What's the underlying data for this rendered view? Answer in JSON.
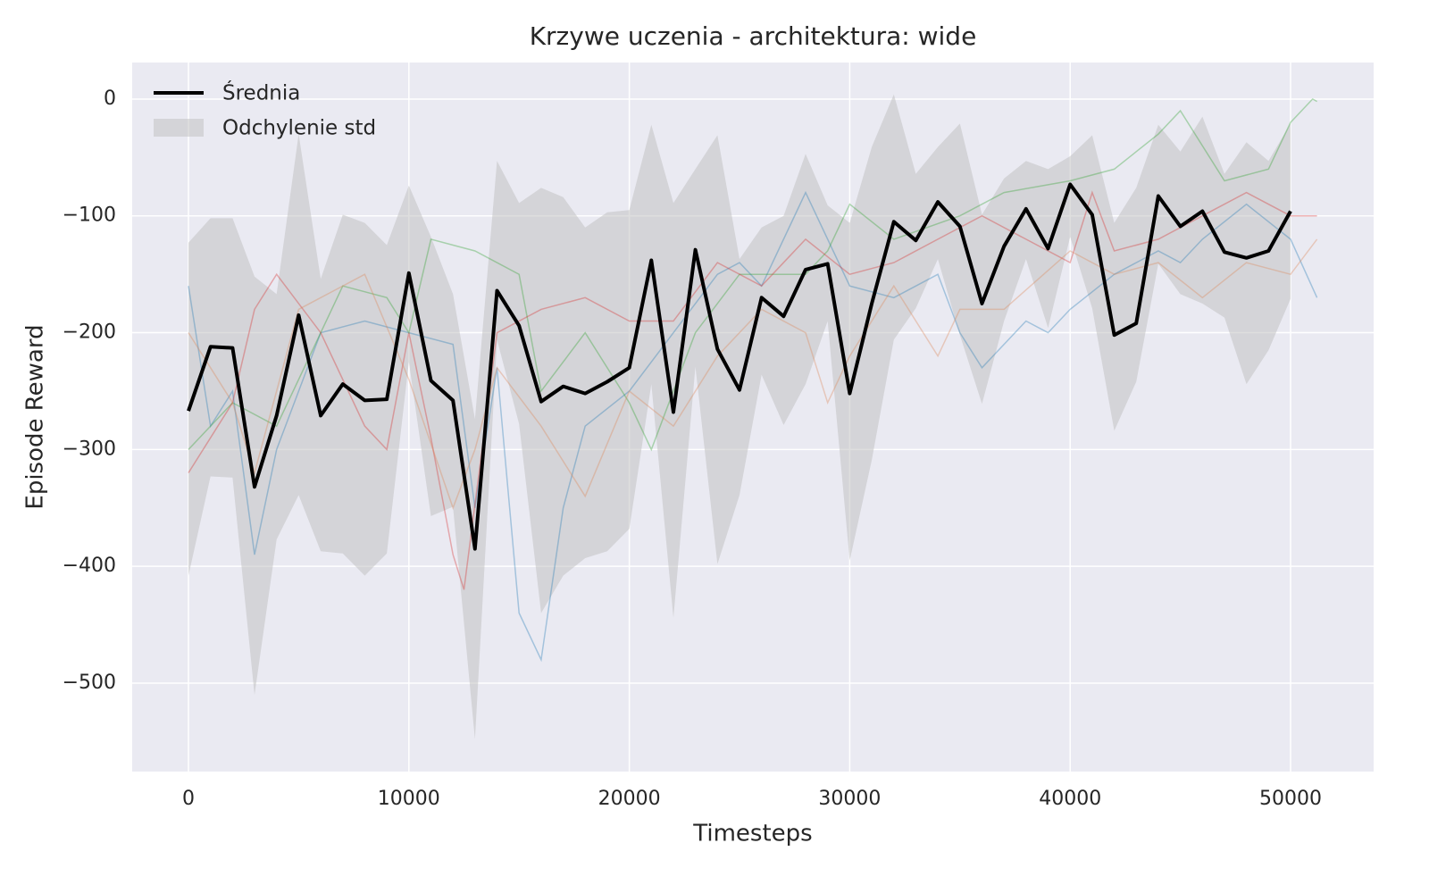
{
  "chart_data": {
    "type": "line",
    "title": "Krzywe uczenia - architektura: wide",
    "xlabel": "Timesteps",
    "ylabel": "Episode Reward",
    "xlim": [
      -2553,
      53768
    ],
    "ylim": [
      -575.7,
      31.3
    ],
    "xticks": [
      0,
      10000,
      20000,
      30000,
      40000,
      50000
    ],
    "yticks": [
      {
        "value": 0,
        "label": "0"
      },
      {
        "value": -100,
        "label": "−100"
      },
      {
        "value": -200,
        "label": "−200"
      },
      {
        "value": -300,
        "label": "−300"
      },
      {
        "value": -400,
        "label": "−400"
      },
      {
        "value": -500,
        "label": "−500"
      }
    ],
    "grid": true,
    "legend": "upper left",
    "x": [
      0,
      1000,
      2000,
      3000,
      4000,
      5000,
      6000,
      7000,
      8000,
      9000,
      10000,
      11000,
      12000,
      13000,
      14000,
      15000,
      16000,
      17000,
      18000,
      19000,
      20000,
      21000,
      22000,
      23000,
      24000,
      25000,
      26000,
      27000,
      28000,
      29000,
      30000,
      31000,
      32000,
      33000,
      34000,
      35000,
      36000,
      37000,
      38000,
      39000,
      40000,
      41000,
      42000,
      43000,
      44000,
      45000,
      46000,
      47000,
      48000,
      49000,
      50000
    ],
    "series": [
      {
        "name": "Średnia",
        "color": "#000000",
        "values": [
          -267,
          -212,
          -213,
          -332,
          -271,
          -185,
          -271,
          -244,
          -258,
          -257,
          -149,
          -241,
          -258,
          -385,
          -164,
          -194,
          -259,
          -246,
          -252,
          -242,
          -230,
          -138,
          -268,
          -129,
          -214,
          -249,
          -170,
          -186,
          -146,
          -141,
          -252,
          -175,
          -105,
          -121,
          -88,
          -109,
          -175,
          -126,
          -94,
          -128,
          -73,
          -99,
          -202,
          -192,
          -83,
          -109,
          -96,
          -131,
          -136,
          -130,
          -96
        ]
      }
    ],
    "band": {
      "name": "Odchylenie std",
      "color": "#bdbdbd",
      "upper": [
        -123,
        -102,
        -102,
        -152,
        -167,
        -30,
        -154,
        -99,
        -106,
        -125,
        -74,
        -118,
        -167,
        -274,
        -53,
        -89,
        -76,
        -84,
        -110,
        -97,
        -95,
        -22,
        -89,
        -60,
        -31,
        -137,
        -110,
        -100,
        -47,
        -91,
        -106,
        -41,
        4,
        -64,
        -41,
        -21,
        -99,
        -68,
        -53,
        -60,
        -49,
        -31,
        -106,
        -76,
        -22,
        -45,
        -15,
        -64,
        -37,
        -53,
        -21
      ],
      "lower": [
        -408,
        -323,
        -324,
        -510,
        -377,
        -339,
        -387,
        -389,
        -408,
        -389,
        -225,
        -357,
        -349,
        -548,
        -206,
        -278,
        -440,
        -408,
        -393,
        -387,
        -368,
        -244,
        -444,
        -229,
        -398,
        -339,
        -236,
        -279,
        -244,
        -190,
        -395,
        -309,
        -206,
        -179,
        -137,
        -202,
        -261,
        -190,
        -137,
        -196,
        -118,
        -179,
        -284,
        -242,
        -141,
        -167,
        -175,
        -187,
        -244,
        -215,
        -171
      ]
    },
    "runs": [
      {
        "color": "#1f77b4",
        "x": [
          0,
          1000,
          2000,
          3000,
          4000,
          6000,
          8000,
          10000,
          12000,
          13000,
          14000,
          15000,
          16000,
          17000,
          18000,
          20000,
          22000,
          24000,
          25000,
          26000,
          28000,
          30000,
          32000,
          34000,
          35000,
          36000,
          38000,
          39000,
          40000,
          42000,
          44000,
          45000,
          46000,
          48000,
          50000,
          51200
        ],
        "values": [
          -160,
          -280,
          -250,
          -390,
          -300,
          -200,
          -190,
          -200,
          -210,
          -350,
          -230,
          -440,
          -480,
          -350,
          -280,
          -250,
          -200,
          -150,
          -140,
          -160,
          -80,
          -160,
          -170,
          -150,
          -200,
          -230,
          -190,
          -200,
          -180,
          -150,
          -130,
          -140,
          -120,
          -90,
          -120,
          -170
        ]
      },
      {
        "color": "#2ca02c",
        "x": [
          0,
          2000,
          4000,
          6000,
          7000,
          9000,
          10000,
          11000,
          13000,
          15000,
          16000,
          18000,
          20000,
          21000,
          23000,
          25000,
          28000,
          29000,
          30000,
          32000,
          35000,
          37000,
          40000,
          42000,
          44000,
          45000,
          47000,
          49000,
          50000,
          51000,
          51200
        ],
        "values": [
          -300,
          -260,
          -280,
          -200,
          -160,
          -170,
          -200,
          -120,
          -130,
          -150,
          -250,
          -200,
          -260,
          -300,
          -200,
          -150,
          -150,
          -130,
          -90,
          -120,
          -100,
          -80,
          -70,
          -60,
          -30,
          -10,
          -70,
          -60,
          -20,
          0,
          -2
        ]
      },
      {
        "color": "#d62728",
        "x": [
          0,
          2000,
          3000,
          4000,
          6000,
          8000,
          9000,
          10000,
          11000,
          12000,
          12500,
          14000,
          16000,
          18000,
          20000,
          22000,
          24000,
          26000,
          28000,
          30000,
          32000,
          34000,
          36000,
          38000,
          40000,
          41000,
          42000,
          44000,
          46000,
          48000,
          50000,
          51200
        ],
        "values": [
          -320,
          -260,
          -180,
          -150,
          -200,
          -280,
          -300,
          -200,
          -290,
          -390,
          -420,
          -200,
          -180,
          -170,
          -190,
          -190,
          -140,
          -160,
          -120,
          -150,
          -140,
          -120,
          -100,
          -120,
          -140,
          -80,
          -130,
          -120,
          -100,
          -80,
          -100,
          -100
        ]
      },
      {
        "color": "#dd8452",
        "x": [
          0,
          2000,
          3000,
          5000,
          8000,
          10000,
          12000,
          13000,
          14000,
          16000,
          18000,
          20000,
          22000,
          24000,
          26000,
          28000,
          29000,
          30000,
          32000,
          34000,
          35000,
          37000,
          40000,
          42000,
          44000,
          46000,
          48000,
          50000,
          51200
        ],
        "values": [
          -200,
          -260,
          -320,
          -180,
          -150,
          -240,
          -350,
          -300,
          -230,
          -280,
          -340,
          -250,
          -280,
          -220,
          -180,
          -200,
          -260,
          -220,
          -160,
          -220,
          -180,
          -180,
          -130,
          -150,
          -140,
          -170,
          -140,
          -150,
          -120
        ]
      }
    ]
  }
}
